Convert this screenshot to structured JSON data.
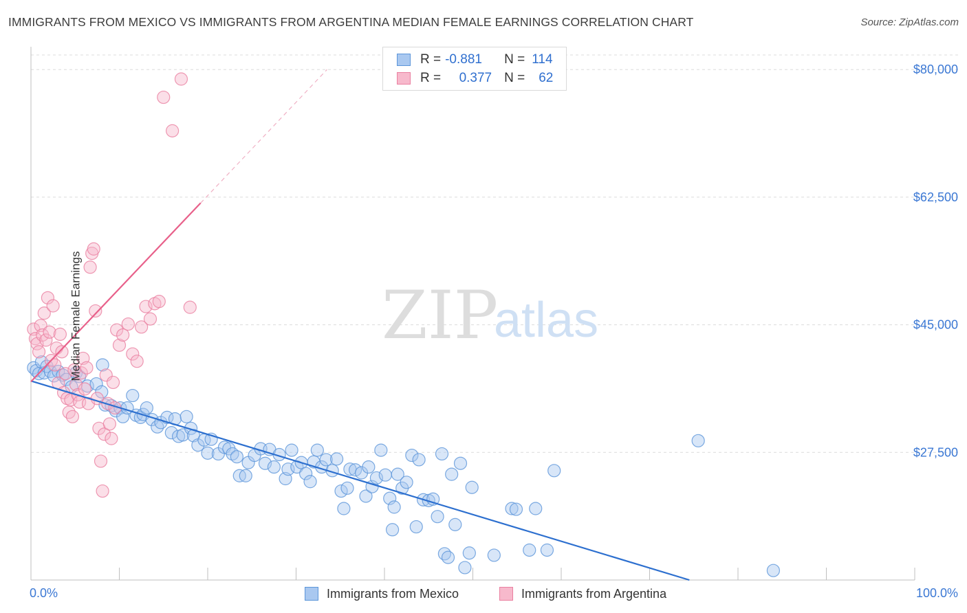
{
  "title": "IMMIGRANTS FROM MEXICO VS IMMIGRANTS FROM ARGENTINA MEDIAN FEMALE EARNINGS CORRELATION CHART",
  "source": "Source: ZipAtlas.com",
  "watermark": {
    "zip": "ZIP",
    "atlas": "atlas"
  },
  "stats": {
    "mexico": {
      "r_label": "R =",
      "r_value": "-0.881",
      "n_label": "N =",
      "n_value": "114"
    },
    "argentina": {
      "r_label": "R =",
      "r_value": "0.377",
      "n_label": "N =",
      "n_value": "62"
    }
  },
  "legend": {
    "mexico": "Immigrants from Mexico",
    "argentina": "Immigrants from Argentina"
  },
  "colors": {
    "mexico_fill": "#a9c8f0",
    "mexico_stroke": "#5b95d9",
    "mexico_line": "#2c6fcf",
    "argentina_fill": "#f7b9cc",
    "argentina_stroke": "#ea7fa0",
    "argentina_line": "#e8608a",
    "grid": "#dcdcdc",
    "ytick": "#3b78d4",
    "xtick": "#3b78d4"
  },
  "chart_data": {
    "type": "scatter",
    "ylabel": "Median Female Earnings",
    "xlabel": "",
    "xlim": [
      0,
      100
    ],
    "ylim": [
      10000,
      82000
    ],
    "x_tick_labels": [
      "0.0%",
      "100.0%"
    ],
    "y_ticks": [
      {
        "value": 80000,
        "label": "$80,000"
      },
      {
        "value": 62500,
        "label": "$62,500"
      },
      {
        "value": 45000,
        "label": "$45,000"
      },
      {
        "value": 27500,
        "label": "$27,500"
      }
    ],
    "series": [
      {
        "name": "Immigrants from Mexico",
        "r": -0.881,
        "n": 114,
        "trend": {
          "x": [
            0,
            74.5
          ],
          "y": [
            37300,
            10000
          ]
        },
        "points": [
          [
            0.3,
            39100
          ],
          [
            0.6,
            38700
          ],
          [
            0.9,
            38300
          ],
          [
            1.2,
            39900
          ],
          [
            1.5,
            38400
          ],
          [
            1.8,
            39300
          ],
          [
            2.2,
            38600
          ],
          [
            2.6,
            38000
          ],
          [
            3.1,
            38600
          ],
          [
            3.6,
            38100
          ],
          [
            4.0,
            37500
          ],
          [
            4.6,
            36500
          ],
          [
            5.1,
            38400
          ],
          [
            5.5,
            37900
          ],
          [
            6.4,
            36600
          ],
          [
            7.4,
            36900
          ],
          [
            8.0,
            35800
          ],
          [
            8.1,
            39500
          ],
          [
            8.4,
            34000
          ],
          [
            9.1,
            33900
          ],
          [
            9.6,
            33200
          ],
          [
            10.1,
            33600
          ],
          [
            10.4,
            32400
          ],
          [
            10.9,
            33600
          ],
          [
            11.5,
            35300
          ],
          [
            11.9,
            32600
          ],
          [
            12.4,
            32300
          ],
          [
            12.7,
            32700
          ],
          [
            13.1,
            33600
          ],
          [
            13.7,
            32000
          ],
          [
            14.3,
            31000
          ],
          [
            14.7,
            31600
          ],
          [
            15.4,
            32300
          ],
          [
            15.9,
            30200
          ],
          [
            16.3,
            32100
          ],
          [
            16.7,
            29700
          ],
          [
            17.2,
            29900
          ],
          [
            17.6,
            32400
          ],
          [
            18.1,
            30800
          ],
          [
            18.4,
            29800
          ],
          [
            18.9,
            28500
          ],
          [
            19.6,
            29200
          ],
          [
            20.0,
            27400
          ],
          [
            20.4,
            29300
          ],
          [
            21.2,
            27300
          ],
          [
            21.9,
            28200
          ],
          [
            22.4,
            28000
          ],
          [
            22.8,
            27300
          ],
          [
            23.3,
            26900
          ],
          [
            23.6,
            24300
          ],
          [
            24.3,
            24300
          ],
          [
            24.6,
            26100
          ],
          [
            25.3,
            27100
          ],
          [
            26.0,
            28000
          ],
          [
            26.5,
            26000
          ],
          [
            27.0,
            27900
          ],
          [
            27.5,
            25500
          ],
          [
            28.1,
            27200
          ],
          [
            28.8,
            23900
          ],
          [
            29.1,
            25200
          ],
          [
            29.5,
            27800
          ],
          [
            30.1,
            25500
          ],
          [
            30.6,
            26100
          ],
          [
            31.1,
            24600
          ],
          [
            31.6,
            23500
          ],
          [
            32.0,
            26200
          ],
          [
            32.4,
            27800
          ],
          [
            32.9,
            25500
          ],
          [
            33.4,
            26500
          ],
          [
            34.1,
            25000
          ],
          [
            34.6,
            26600
          ],
          [
            35.1,
            22200
          ],
          [
            35.4,
            19800
          ],
          [
            35.8,
            22600
          ],
          [
            36.1,
            25200
          ],
          [
            36.7,
            25100
          ],
          [
            37.4,
            24700
          ],
          [
            37.9,
            21500
          ],
          [
            38.2,
            25500
          ],
          [
            38.6,
            22800
          ],
          [
            39.1,
            24000
          ],
          [
            39.6,
            27800
          ],
          [
            40.1,
            24400
          ],
          [
            40.6,
            21200
          ],
          [
            40.9,
            16900
          ],
          [
            41.1,
            20000
          ],
          [
            41.5,
            24500
          ],
          [
            42.0,
            22600
          ],
          [
            42.5,
            23400
          ],
          [
            43.1,
            27100
          ],
          [
            43.6,
            17300
          ],
          [
            43.9,
            26500
          ],
          [
            44.4,
            21000
          ],
          [
            45.0,
            20900
          ],
          [
            45.5,
            21100
          ],
          [
            46.0,
            18700
          ],
          [
            46.5,
            27300
          ],
          [
            46.8,
            13600
          ],
          [
            47.2,
            13100
          ],
          [
            47.6,
            24500
          ],
          [
            48.0,
            17600
          ],
          [
            48.6,
            26000
          ],
          [
            49.1,
            11700
          ],
          [
            49.6,
            13700
          ],
          [
            49.9,
            22700
          ],
          [
            52.4,
            13400
          ],
          [
            54.4,
            19800
          ],
          [
            54.9,
            19700
          ],
          [
            56.4,
            14100
          ],
          [
            57.1,
            19800
          ],
          [
            58.4,
            14100
          ],
          [
            59.2,
            25000
          ],
          [
            75.5,
            29100
          ],
          [
            84.0,
            11300
          ]
        ]
      },
      {
        "name": "Immigrants from Argentina",
        "r": 0.377,
        "n": 62,
        "trend": {
          "x": [
            0,
            19.2
          ],
          "y": [
            37200,
            61700
          ]
        },
        "trend_extension": {
          "x": [
            19.2,
            33.5
          ],
          "y": [
            61700,
            80000
          ]
        },
        "points": [
          [
            0.3,
            44400
          ],
          [
            0.5,
            43100
          ],
          [
            0.7,
            42400
          ],
          [
            0.9,
            41300
          ],
          [
            1.1,
            44900
          ],
          [
            1.3,
            43600
          ],
          [
            1.5,
            46600
          ],
          [
            1.7,
            42900
          ],
          [
            1.9,
            48700
          ],
          [
            2.1,
            44000
          ],
          [
            2.3,
            40100
          ],
          [
            2.5,
            47600
          ],
          [
            2.7,
            39500
          ],
          [
            2.9,
            41800
          ],
          [
            3.1,
            37000
          ],
          [
            3.3,
            43700
          ],
          [
            3.5,
            41300
          ],
          [
            3.7,
            35700
          ],
          [
            3.9,
            38300
          ],
          [
            4.1,
            34900
          ],
          [
            4.3,
            33000
          ],
          [
            4.5,
            34700
          ],
          [
            4.7,
            32400
          ],
          [
            4.9,
            38800
          ],
          [
            5.1,
            36800
          ],
          [
            5.3,
            35400
          ],
          [
            5.5,
            34400
          ],
          [
            5.7,
            38400
          ],
          [
            5.9,
            40400
          ],
          [
            6.1,
            36200
          ],
          [
            6.3,
            39100
          ],
          [
            6.5,
            34200
          ],
          [
            6.7,
            52900
          ],
          [
            6.9,
            54800
          ],
          [
            7.1,
            55400
          ],
          [
            7.3,
            46900
          ],
          [
            7.5,
            34900
          ],
          [
            7.7,
            30800
          ],
          [
            7.9,
            26300
          ],
          [
            8.1,
            22200
          ],
          [
            8.3,
            30000
          ],
          [
            8.5,
            38100
          ],
          [
            8.7,
            34200
          ],
          [
            8.9,
            31400
          ],
          [
            9.1,
            29400
          ],
          [
            9.3,
            37100
          ],
          [
            9.5,
            33600
          ],
          [
            9.7,
            44300
          ],
          [
            10.0,
            42200
          ],
          [
            10.4,
            43600
          ],
          [
            11.0,
            45100
          ],
          [
            11.5,
            41000
          ],
          [
            12.0,
            40000
          ],
          [
            12.5,
            44700
          ],
          [
            13.0,
            47500
          ],
          [
            13.5,
            45800
          ],
          [
            14.0,
            47900
          ],
          [
            14.5,
            48200
          ],
          [
            15.0,
            76200
          ],
          [
            16.0,
            71600
          ],
          [
            17.0,
            78700
          ],
          [
            18.0,
            47400
          ]
        ]
      }
    ]
  }
}
